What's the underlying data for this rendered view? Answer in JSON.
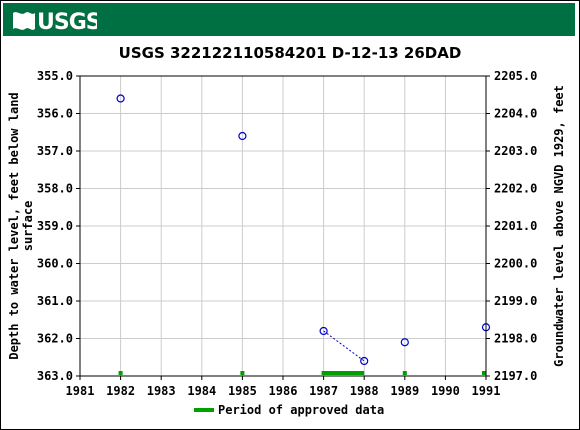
{
  "header": {
    "logo_text": "USGS",
    "banner_color": "#006f41"
  },
  "chart_data": {
    "type": "scatter",
    "title": "USGS 322122110584201 D-12-13 26DAD",
    "ylabel_left": "Depth to water level, feet below land surface",
    "ylabel_left_lines": [
      "Depth to water level, feet below land",
      "surface"
    ],
    "ylabel_right": "Groundwater level above NGVD 1929, feet",
    "xlim": [
      1981,
      1991
    ],
    "ylim_left": [
      355.0,
      363.0
    ],
    "ylim_right": [
      2205.0,
      2197.0
    ],
    "left_axis_inverted": true,
    "x_ticks": [
      "1981",
      "1982",
      "1983",
      "1984",
      "1985",
      "1986",
      "1987",
      "1988",
      "1989",
      "1990",
      "1991"
    ],
    "y_ticks_left": [
      "355.0",
      "356.0",
      "357.0",
      "358.0",
      "359.0",
      "360.0",
      "361.0",
      "362.0",
      "363.0"
    ],
    "y_ticks_right": [
      "2205.0",
      "2204.0",
      "2203.0",
      "2202.0",
      "2201.0",
      "2200.0",
      "2199.0",
      "2198.0",
      "2197.0"
    ],
    "grid": true,
    "series": [
      {
        "name": "",
        "marker": "open-circle",
        "color": "#0000cc",
        "points": [
          {
            "x": 1982.0,
            "y": 355.6
          },
          {
            "x": 1985.0,
            "y": 356.6
          },
          {
            "x": 1987.0,
            "y": 361.8
          },
          {
            "x": 1988.0,
            "y": 362.6
          },
          {
            "x": 1989.0,
            "y": 362.1
          },
          {
            "x": 1991.0,
            "y": 361.7
          }
        ],
        "dotted_segments": [
          [
            2,
            3
          ]
        ]
      }
    ],
    "approved_periods": {
      "color": "#00a000",
      "ranges": [
        [
          1981.95,
          1982.05
        ],
        [
          1984.95,
          1985.05
        ],
        [
          1986.95,
          1988.0
        ],
        [
          1988.95,
          1989.05
        ],
        [
          1990.9,
          1991.0
        ]
      ]
    },
    "legend": {
      "label": "Period of approved data",
      "placement": "bottom-center",
      "color": "#00a000"
    }
  }
}
